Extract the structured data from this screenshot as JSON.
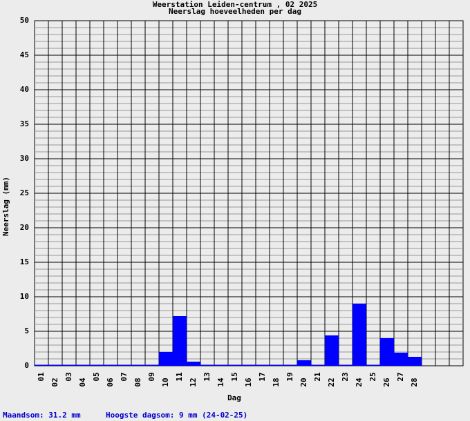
{
  "chart_data": {
    "type": "bar",
    "title": "Weerstation Leiden-centrum , 02 2025",
    "subtitle": "Neerslag hoeveelheden per dag",
    "y_label": "Neerslag (mm)",
    "x_label": "Dag",
    "categories": [
      "01",
      "02",
      "03",
      "04",
      "05",
      "06",
      "07",
      "08",
      "09",
      "10",
      "11",
      "12",
      "13",
      "14",
      "15",
      "16",
      "17",
      "18",
      "19",
      "20",
      "21",
      "22",
      "23",
      "24",
      "25",
      "26",
      "27",
      "28",
      null,
      null,
      null
    ],
    "values": [
      0,
      0,
      0,
      0,
      0,
      0,
      0,
      0,
      0,
      2.0,
      7.2,
      0.6,
      0,
      0,
      0,
      0,
      0,
      0,
      0,
      0.8,
      0,
      4.4,
      0,
      9,
      0,
      4,
      1.9,
      1.3,
      null,
      null,
      null
    ],
    "color": "#0000ff",
    "ylim": [
      0,
      50
    ],
    "yticks": [
      0,
      5,
      10,
      15,
      20,
      25,
      30,
      35,
      40,
      45,
      50
    ],
    "grid": true,
    "annotations": [
      "Maandsom: 31.2 mm",
      "Hoogste dagsom: 9 mm (24-02-25)"
    ]
  }
}
